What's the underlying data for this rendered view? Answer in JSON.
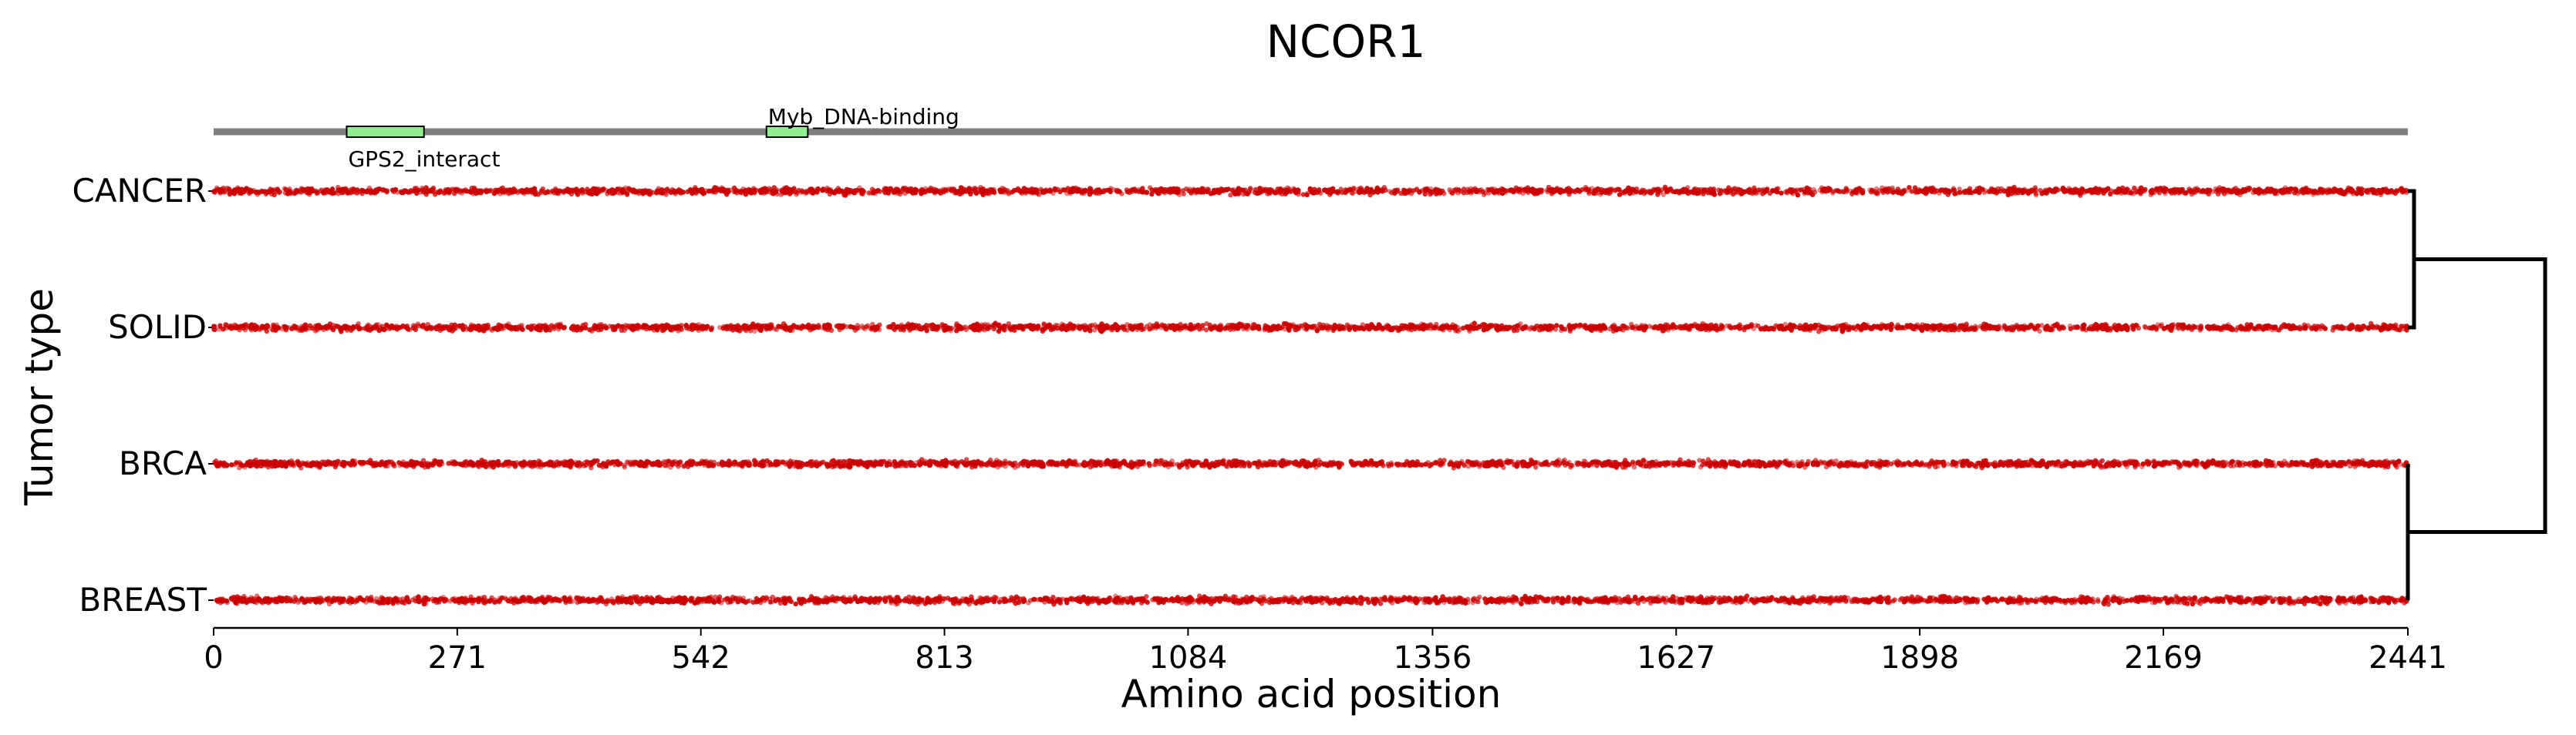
{
  "chart_data": {
    "type": "scatter",
    "title": "NCOR1",
    "xlabel": "Amino acid position",
    "ylabel": "Tumor type",
    "xlim": [
      0,
      2441
    ],
    "x_ticks": [
      "0",
      "271",
      "542",
      "813",
      "1084",
      "1356",
      "1627",
      "1898",
      "2169",
      "2441"
    ],
    "x_tick_values": [
      0,
      271,
      542,
      813,
      1084,
      1356,
      1627,
      1898,
      2169,
      2441
    ],
    "categories": [
      "CANCER",
      "SOLID",
      "BRCA",
      "BREAST"
    ],
    "protein_length": 2441,
    "domains": [
      {
        "name": "GPS2_interact",
        "start": 148,
        "end": 234,
        "label_position": "below"
      },
      {
        "name": "Myb_DNA-binding",
        "start": 615,
        "end": 661,
        "label_position": "above"
      }
    ],
    "point_color": "#cc0000",
    "domain_color": "#90ee90",
    "dendrogram": {
      "clusters": [
        [
          "CANCER",
          "SOLID"
        ],
        [
          "BRCA",
          "BREAST"
        ]
      ],
      "description": "hierarchical clustering tree on the right side"
    },
    "grid": false
  }
}
